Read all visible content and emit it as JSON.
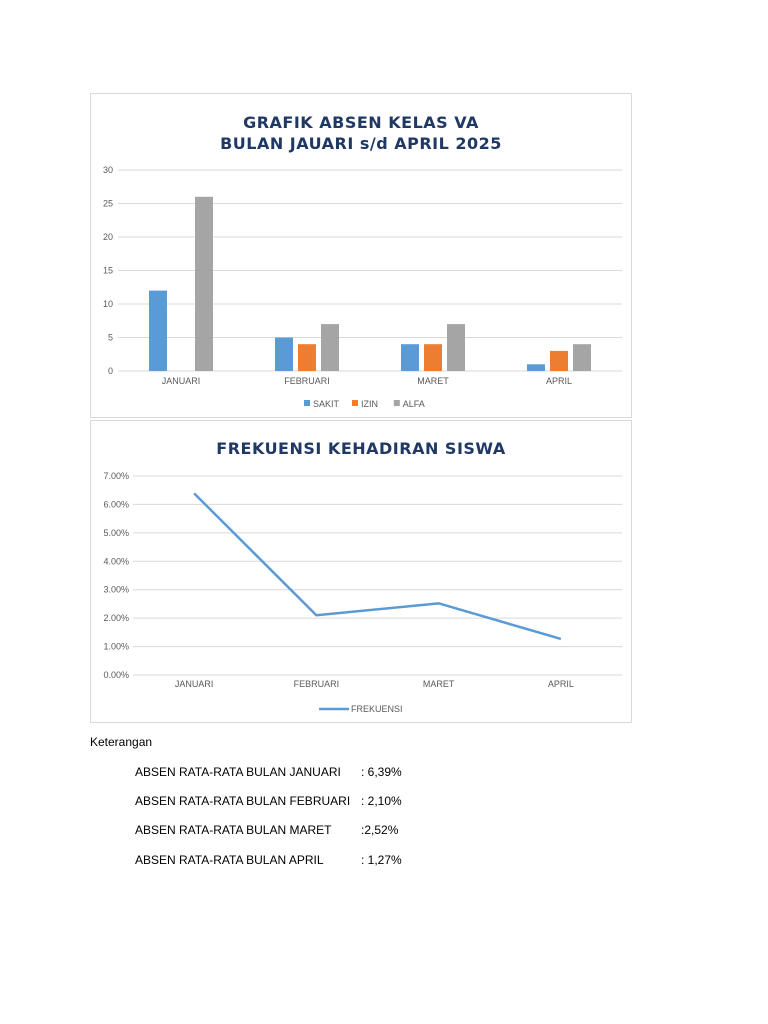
{
  "chart_data": [
    {
      "type": "bar",
      "title_lines": [
        "GRAFIK ABSEN KELAS VA",
        "BULAN JAUARI s/d APRIL 2025"
      ],
      "categories": [
        "JANUARI",
        "FEBRUARI",
        "MARET",
        "APRIL"
      ],
      "series": [
        {
          "name": "SAKIT",
          "color": "#5b9bd5",
          "values": [
            12,
            5,
            4,
            1
          ]
        },
        {
          "name": "IZIN",
          "color": "#ed7d31",
          "values": [
            0,
            4,
            4,
            3
          ]
        },
        {
          "name": "ALFA",
          "color": "#a5a5a5",
          "values": [
            26,
            7,
            7,
            4
          ]
        }
      ],
      "ylim": [
        0,
        30
      ],
      "yticks": [
        "0",
        "5",
        "10",
        "15",
        "20",
        "25",
        "30"
      ],
      "grid": true,
      "legend_position": "bottom"
    },
    {
      "type": "line",
      "title_lines": [
        "FREKUENSI KEHADIRAN SISWA"
      ],
      "categories": [
        "JANUARI",
        "FEBRUARI",
        "MARET",
        "APRIL"
      ],
      "series": [
        {
          "name": "FREKUENSI",
          "color": "#5b9bd5",
          "values": [
            6.39,
            2.1,
            2.52,
            1.27
          ]
        }
      ],
      "ylim": [
        0,
        7
      ],
      "yticks": [
        "0.00%",
        "1.00%",
        "2.00%",
        "3.00%",
        "4.00%",
        "5.00%",
        "6.00%",
        "7.00%"
      ],
      "grid": true,
      "legend_position": "bottom"
    }
  ],
  "notes": {
    "heading": "Keterangan",
    "rows": [
      {
        "label": "ABSEN RATA-RATA BULAN JANUARI",
        "value": ": 6,39%"
      },
      {
        "label": "ABSEN RATA-RATA BULAN FEBRUARI",
        "value": ": 2,10%"
      },
      {
        "label": "ABSEN RATA-RATA BULAN MARET",
        "value": ":2,52%"
      },
      {
        "label": "ABSEN RATA-RATA BULAN APRIL",
        "value": ": 1,27%"
      }
    ]
  }
}
